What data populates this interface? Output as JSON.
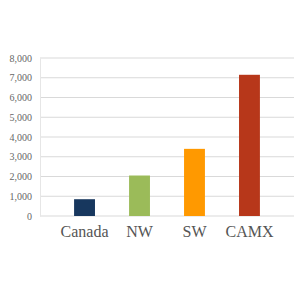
{
  "chart_data": {
    "type": "bar",
    "categories": [
      "Canada",
      "NW",
      "SW",
      "CAMX"
    ],
    "values": [
      850,
      2050,
      3400,
      7150
    ],
    "colors": [
      "#17375e",
      "#9bbb59",
      "#ff9900",
      "#b7371a"
    ],
    "ylim": [
      0,
      8000
    ],
    "yticks": [
      0,
      {
        "value": 1000,
        "label": "1,000"
      },
      {
        "value": 2000,
        "label": "2,000"
      },
      {
        "value": 3000,
        "label": "3,000"
      },
      {
        "value": 4000,
        "label": "4,000"
      },
      {
        "value": 5000,
        "label": "5,000"
      },
      {
        "value": 6000,
        "label": "6,000"
      },
      {
        "value": 7000,
        "label": "7,000"
      },
      {
        "value": 8000,
        "label": "8,000"
      }
    ],
    "grid": true
  }
}
